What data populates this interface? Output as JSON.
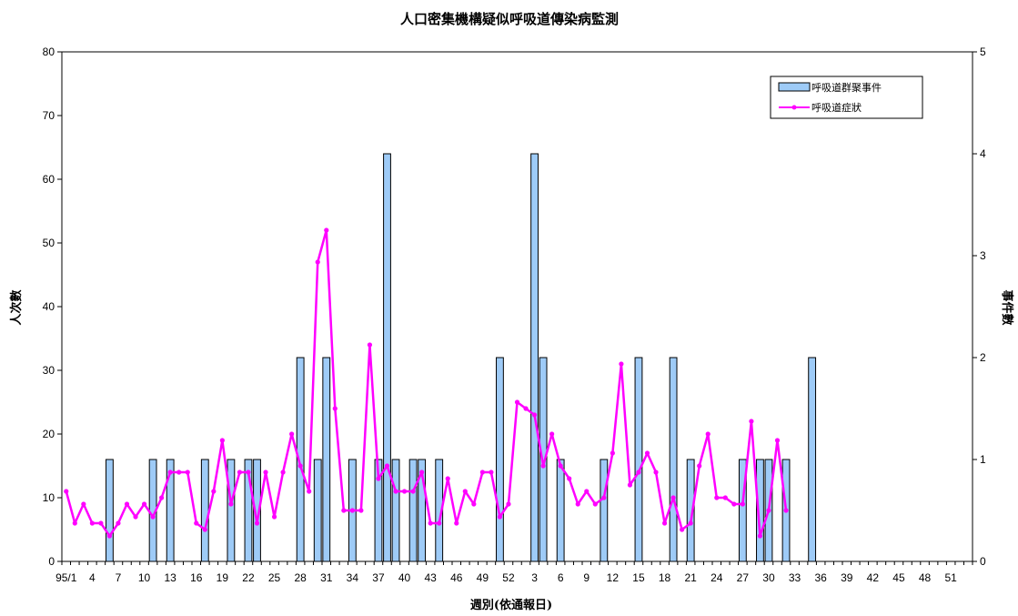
{
  "chart_data": {
    "type": "bar+line",
    "title": "人口密集機構疑似呼吸道傳染病監測",
    "xlabel": "週別(依通報日)",
    "ylabel_left": "人次數",
    "ylabel_right": "事件數",
    "ylim_left": [
      0,
      80
    ],
    "ylim_right": [
      0,
      5
    ],
    "yticks_left": [
      "0",
      "10",
      "20",
      "30",
      "40",
      "50",
      "60",
      "70",
      "80"
    ],
    "yticks_right": [
      "0",
      "1",
      "2",
      "3",
      "4",
      "5"
    ],
    "x_tick_labels": [
      "95/1",
      "4",
      "7",
      "10",
      "13",
      "16",
      "19",
      "22",
      "25",
      "28",
      "31",
      "34",
      "37",
      "40",
      "43",
      "46",
      "49",
      "52",
      "3",
      "6",
      "9",
      "12",
      "15",
      "18",
      "21",
      "24",
      "27",
      "30",
      "33",
      "36",
      "39",
      "42",
      "45",
      "48",
      "51"
    ],
    "grid": false,
    "legend_position": "top-right",
    "series": [
      {
        "name": "呼吸道群聚事件",
        "kind": "bar",
        "axis": "right",
        "color": "#9ECBF7",
        "values": [
          0,
          0,
          0,
          0,
          0,
          1,
          0,
          0,
          0,
          0,
          1,
          0,
          1,
          0,
          0,
          0,
          1,
          0,
          0,
          1,
          0,
          1,
          1,
          0,
          0,
          0,
          0,
          2,
          0,
          1,
          2,
          0,
          0,
          1,
          0,
          0,
          1,
          4,
          1,
          0,
          1,
          1,
          0,
          1,
          0,
          0,
          0,
          0,
          0,
          0,
          2,
          0,
          0,
          0,
          4,
          2,
          0,
          1,
          0,
          0,
          0,
          0,
          1,
          0,
          0,
          0,
          2,
          0,
          0,
          0,
          2,
          0,
          1,
          0,
          0,
          0,
          0,
          0,
          1,
          0,
          1,
          1,
          0,
          1,
          0,
          0,
          2,
          0,
          0,
          0,
          0,
          0,
          0,
          0,
          0,
          0,
          0,
          0,
          0,
          0,
          0,
          0,
          0,
          0,
          0
        ]
      },
      {
        "name": "呼吸道症狀",
        "kind": "line",
        "axis": "left",
        "color": "#FF00FF",
        "values": [
          11,
          6,
          9,
          6,
          6,
          4,
          6,
          9,
          7,
          9,
          7,
          10,
          14,
          14,
          14,
          6,
          5,
          11,
          19,
          9,
          14,
          14,
          6,
          14,
          7,
          14,
          20,
          15,
          11,
          47,
          52,
          24,
          8,
          8,
          8,
          34,
          13,
          15,
          11,
          11,
          11,
          14,
          6,
          6,
          13,
          6,
          11,
          9,
          14,
          14,
          7,
          9,
          25,
          24,
          23,
          15,
          20,
          15,
          13,
          9,
          11,
          9,
          10,
          17,
          31,
          12,
          14,
          17,
          14,
          6,
          10,
          5,
          6,
          15,
          20,
          10,
          10,
          9,
          9,
          22,
          4,
          8,
          19,
          8
        ]
      }
    ]
  }
}
